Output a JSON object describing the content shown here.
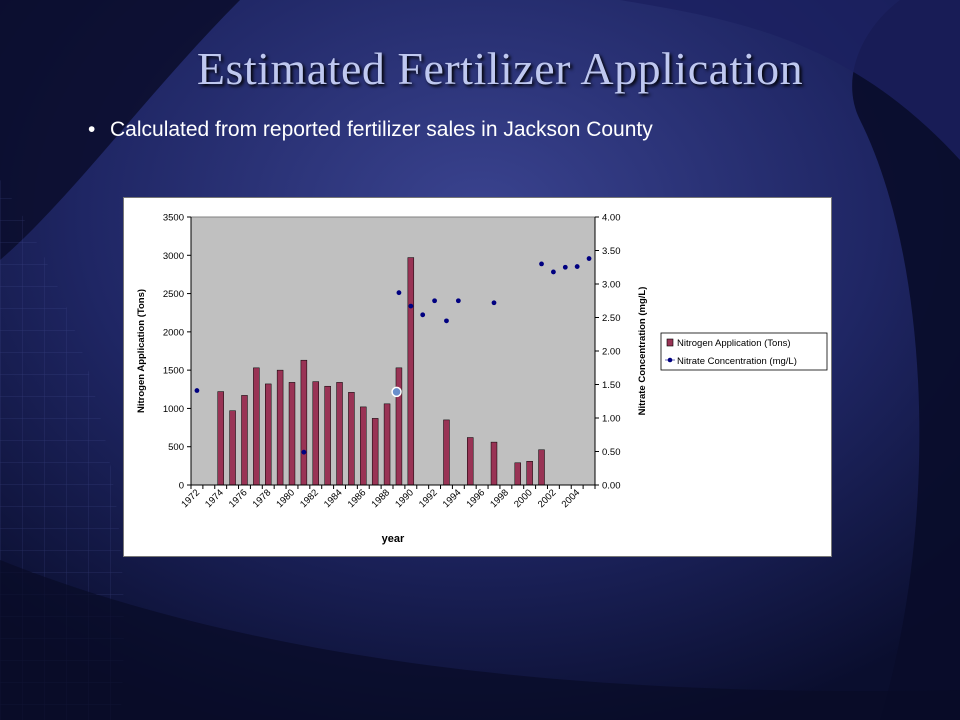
{
  "slide": {
    "title": "Estimated Fertilizer Application",
    "bullet": "Calculated from reported fertilizer sales in Jackson County"
  },
  "colors": {
    "bar_fill": "#993355",
    "point_fill": "#000080",
    "highlight_fill": "#6a8fcc",
    "plot_bg": "#c0c0c0",
    "title_color": "#bfc8f0"
  },
  "chart_data": {
    "type": "bar",
    "xlabel": "year",
    "ylabel": "Nitrogen Application (Tons)",
    "y2label": "Nitrate Concentration (mg/L)",
    "ylim": [
      0,
      3500
    ],
    "y2lim": [
      0,
      4
    ],
    "yticks": [
      "0",
      "500",
      "1000",
      "1500",
      "2000",
      "2500",
      "3000",
      "3500"
    ],
    "y2ticks": [
      "0.00",
      "0.50",
      "1.00",
      "1.50",
      "2.00",
      "2.50",
      "3.00",
      "3.50",
      "4.00"
    ],
    "x_tick_labels": [
      "1972",
      "1974",
      "1976",
      "1978",
      "1980",
      "1982",
      "1984",
      "1986",
      "1988",
      "1990",
      "1992",
      "1994",
      "1996",
      "1998",
      "2000",
      "2002",
      "2004"
    ],
    "x_start": 1972,
    "x_end": 2005,
    "grid": false,
    "legend_position": "right",
    "series": [
      {
        "name": "Nitrogen Application (Tons)",
        "type": "bar",
        "axis": "left",
        "points": [
          [
            1974,
            1220
          ],
          [
            1975,
            970
          ],
          [
            1976,
            1170
          ],
          [
            1977,
            1530
          ],
          [
            1978,
            1320
          ],
          [
            1979,
            1500
          ],
          [
            1980,
            1340
          ],
          [
            1981,
            1630
          ],
          [
            1982,
            1350
          ],
          [
            1983,
            1290
          ],
          [
            1984,
            1340
          ],
          [
            1985,
            1210
          ],
          [
            1986,
            1020
          ],
          [
            1987,
            870
          ],
          [
            1988,
            1060
          ],
          [
            1989,
            1530
          ],
          [
            1990,
            2970
          ],
          [
            1993,
            850
          ],
          [
            1995,
            620
          ],
          [
            1997,
            560
          ],
          [
            1999,
            290
          ],
          [
            2000,
            310
          ],
          [
            2001,
            460
          ]
        ]
      },
      {
        "name": "Nitrate Concentration (mg/L)",
        "type": "scatter",
        "axis": "right",
        "points": [
          [
            1972,
            1.41
          ],
          [
            1981,
            0.49
          ],
          [
            1988.8,
            1.39
          ],
          [
            1989,
            2.87
          ],
          [
            1990,
            2.67
          ],
          [
            1991,
            2.54
          ],
          [
            1992,
            2.75
          ],
          [
            1993,
            2.45
          ],
          [
            1994,
            2.75
          ],
          [
            1997,
            2.72
          ],
          [
            2001,
            3.3
          ],
          [
            2002,
            3.18
          ],
          [
            2003,
            3.25
          ],
          [
            2004,
            3.26
          ],
          [
            2005,
            3.38
          ]
        ],
        "highlighted_point": [
          1988.8,
          1.39
        ]
      }
    ]
  }
}
